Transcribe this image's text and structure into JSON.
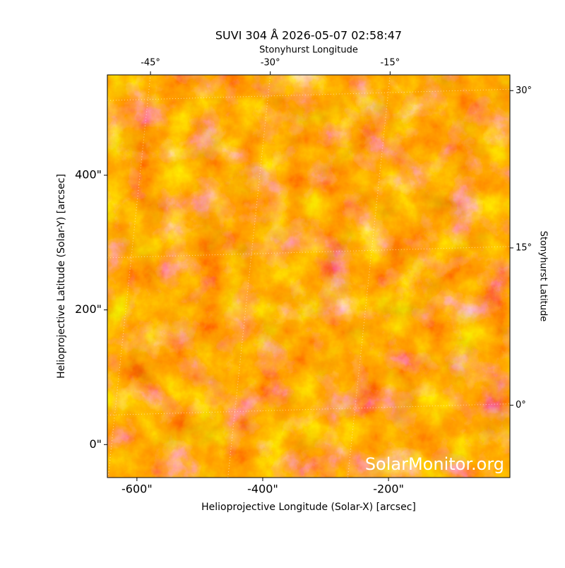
{
  "chart_data": {
    "type": "image",
    "title": "SUVI 304 Å 2026-05-07 02:58:47",
    "xlabel": "Helioprojective Longitude (Solar-X) [arcsec]",
    "ylabel": "Helioprojective Latitude (Solar-Y) [arcsec]",
    "x2label": "Stonyhurst Longitude",
    "y2label": "Stonyhurst Latitude",
    "watermark": "SolarMonitor.org",
    "xlim": [
      -647,
      -7
    ],
    "ylim": [
      -49,
      549
    ],
    "xticks": [
      {
        "value": -600,
        "label": "-600\""
      },
      {
        "value": -400,
        "label": "-400\""
      },
      {
        "value": -200,
        "label": "-200\""
      }
    ],
    "yticks": [
      {
        "value": 0,
        "label": "0\""
      },
      {
        "value": 200,
        "label": "200\""
      },
      {
        "value": 400,
        "label": "400\""
      }
    ],
    "x2lim": [
      -50.4,
      0
    ],
    "x2ticks": [
      {
        "value": -45,
        "label": "-45°"
      },
      {
        "value": -30,
        "label": "-30°"
      },
      {
        "value": -15,
        "label": "-15°"
      }
    ],
    "y2lim": [
      -6.9,
      31.5
    ],
    "y2ticks": [
      {
        "value": 0,
        "label": "0°"
      },
      {
        "value": 15,
        "label": "15°"
      },
      {
        "value": 30,
        "label": "30°"
      }
    ],
    "grid": true
  }
}
